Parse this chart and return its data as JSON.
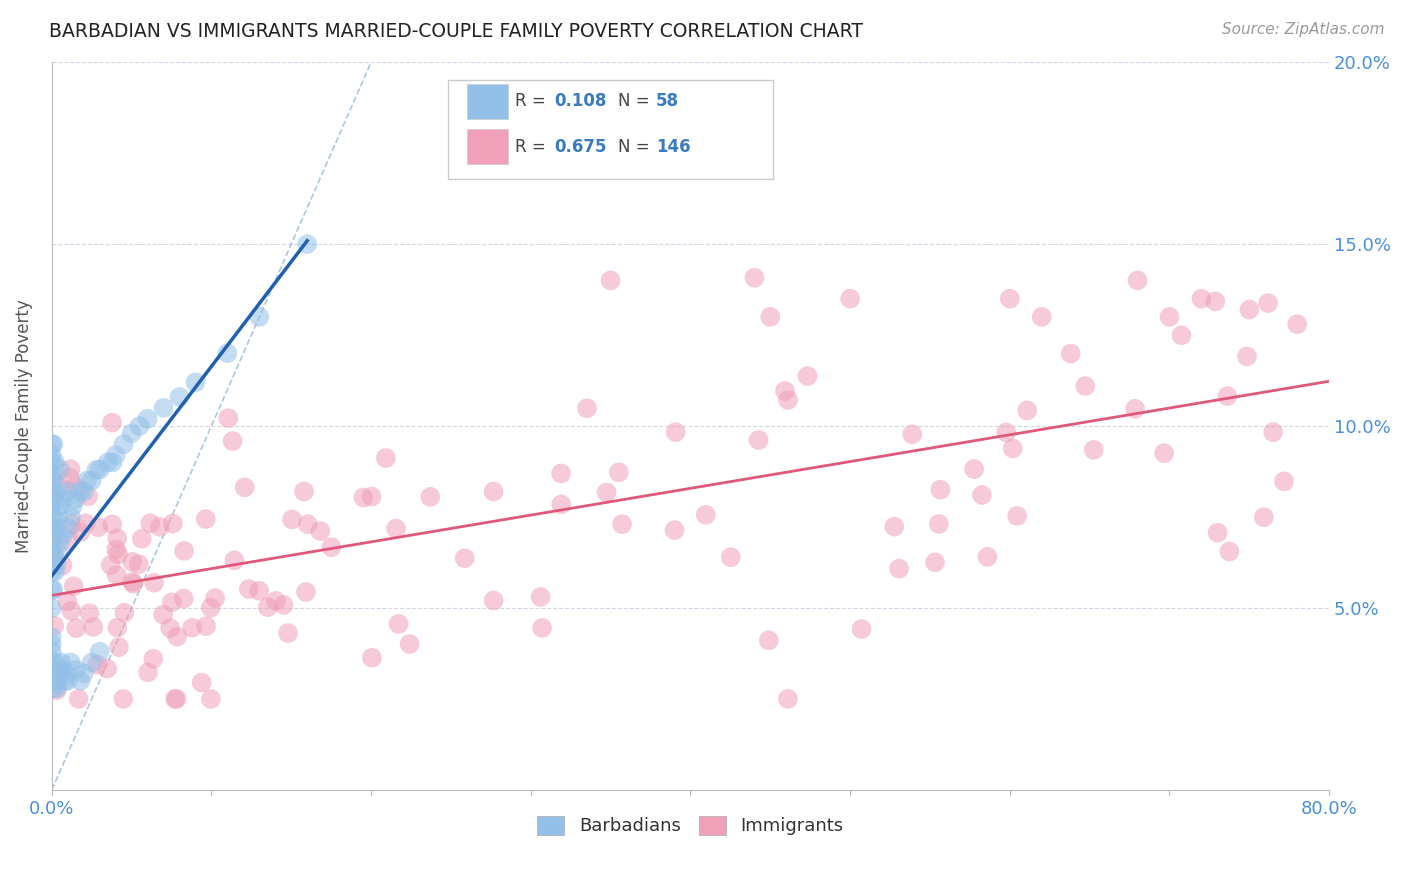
{
  "title": "BARBADIAN VS IMMIGRANTS MARRIED-COUPLE FAMILY POVERTY CORRELATION CHART",
  "source": "Source: ZipAtlas.com",
  "ylabel": "Married-Couple Family Poverty",
  "xlim": [
    0.0,
    0.8
  ],
  "ylim": [
    0.0,
    0.2
  ],
  "barbadian_color": "#92c0e8",
  "immigrant_color": "#f0a0b8",
  "barbadian_line_color": "#2060b0",
  "immigrant_line_color": "#e05878",
  "ref_line_color": "#b8c8e0",
  "legend_R_barbadian": "0.108",
  "legend_N_barbadian": "58",
  "legend_R_immigrant": "0.675",
  "legend_N_immigrant": "146"
}
